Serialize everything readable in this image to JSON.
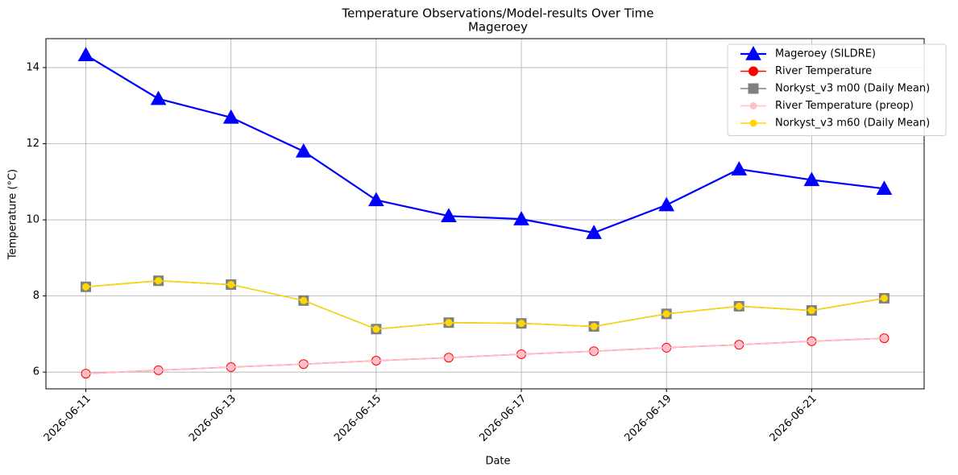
{
  "chart_data": {
    "type": "line",
    "title": "Temperature Observations/Model-results Over Time",
    "subtitle": "Mageroey",
    "x_label": "Date",
    "y_label": "Temperature (°C)",
    "x": [
      "2026-06-11",
      "2026-06-12",
      "2026-06-13",
      "2026-06-14",
      "2026-06-15",
      "2026-06-16",
      "2026-06-17",
      "2026-06-18",
      "2026-06-19",
      "2026-06-20",
      "2026-06-21",
      "2026-06-22"
    ],
    "xticks": [
      "2026-06-11",
      "2026-06-13",
      "2026-06-15",
      "2026-06-17",
      "2026-06-19",
      "2026-06-21"
    ],
    "ylim": [
      5.56,
      14.76
    ],
    "yticks": [
      6,
      8,
      10,
      12,
      14
    ],
    "grid": true,
    "legend": "upper right",
    "series": [
      {
        "name": "Mageroey (SILDRE)",
        "color": "#0000ff",
        "marker": "triangle",
        "values": [
          14.33,
          13.18,
          12.69,
          11.8,
          10.52,
          10.1,
          10.02,
          9.66,
          10.39,
          11.33,
          11.05,
          10.82
        ]
      },
      {
        "name": "River Temperature",
        "color": "#ff0000",
        "marker": "circle",
        "values": [
          5.96,
          6.05,
          6.13,
          6.21,
          6.3,
          6.38,
          6.47,
          6.55,
          6.64,
          6.72,
          6.81,
          6.89
        ]
      },
      {
        "name": "Norkyst_v3 m00 (Daily Mean)",
        "color": "#808080",
        "marker": "square",
        "values": [
          8.24,
          8.4,
          8.3,
          7.88,
          7.13,
          7.3,
          7.28,
          7.2,
          7.53,
          7.73,
          7.62,
          7.94
        ]
      },
      {
        "name": "River Temperature (preop)",
        "color": "#ffc0cb",
        "marker": "small-circle",
        "values": [
          5.96,
          6.05,
          6.13,
          6.21,
          6.3,
          6.38,
          6.47,
          6.55,
          6.64,
          6.72,
          6.81,
          6.89
        ]
      },
      {
        "name": "Norkyst_v3 m60 (Daily Mean)",
        "color": "#ffd700",
        "marker": "small-circle",
        "values": [
          8.24,
          8.4,
          8.3,
          7.88,
          7.13,
          7.3,
          7.28,
          7.2,
          7.53,
          7.73,
          7.62,
          7.94
        ]
      }
    ]
  }
}
